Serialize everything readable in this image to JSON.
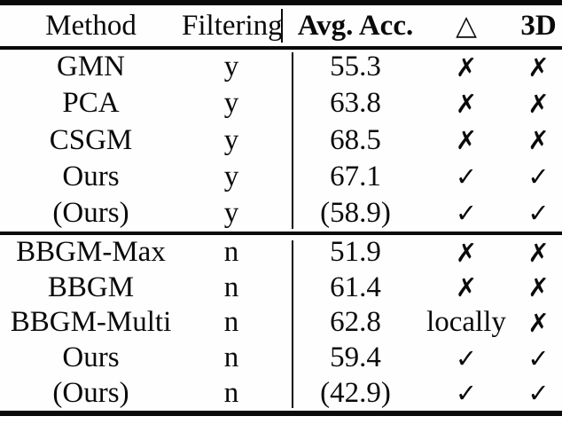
{
  "colors": {
    "text": "#0a0a0a",
    "background": "#fefefe",
    "rule": "#0a0a0a"
  },
  "header": {
    "method": "Method",
    "filtering": "Filtering",
    "avg_acc": "Avg. Acc.",
    "triangle": "△",
    "threed": "3D"
  },
  "table": {
    "groups": [
      {
        "rows": [
          {
            "method": "GMN",
            "filtering": "y",
            "avg_acc": "55.3",
            "triangle": "✗",
            "threed": "✗"
          },
          {
            "method": "PCA",
            "filtering": "y",
            "avg_acc": "63.8",
            "triangle": "✗",
            "threed": "✗"
          },
          {
            "method": "CSGM",
            "filtering": "y",
            "avg_acc": "68.5",
            "triangle": "✗",
            "threed": "✗"
          },
          {
            "method": "Ours",
            "filtering": "y",
            "avg_acc": "67.1",
            "triangle": "✓",
            "threed": "✓"
          },
          {
            "method": "(Ours)",
            "filtering": "y",
            "avg_acc": "(58.9)",
            "triangle": "✓",
            "threed": "✓"
          }
        ]
      },
      {
        "rows": [
          {
            "method": "BBGM-Max",
            "filtering": "n",
            "avg_acc": "51.9",
            "triangle": "✗",
            "threed": "✗"
          },
          {
            "method": "BBGM",
            "filtering": "n",
            "avg_acc": "61.4",
            "triangle": "✗",
            "threed": "✗"
          },
          {
            "method": "BBGM-Multi",
            "filtering": "n",
            "avg_acc": "62.8",
            "triangle": "locally",
            "threed": "✗"
          },
          {
            "method": "Ours",
            "filtering": "n",
            "avg_acc": "59.4",
            "triangle": "✓",
            "threed": "✓"
          },
          {
            "method": "(Ours)",
            "filtering": "n",
            "avg_acc": "(42.9)",
            "triangle": "✓",
            "threed": "✓"
          }
        ]
      }
    ]
  },
  "chart_data": {
    "type": "table",
    "columns": [
      "Method",
      "Filtering",
      "Avg. Acc.",
      "△",
      "3D"
    ],
    "rows": [
      [
        "GMN",
        "y",
        "55.3",
        "✗",
        "✗"
      ],
      [
        "PCA",
        "y",
        "63.8",
        "✗",
        "✗"
      ],
      [
        "CSGM",
        "y",
        "68.5",
        "✗",
        "✗"
      ],
      [
        "Ours",
        "y",
        "67.1",
        "✓",
        "✓"
      ],
      [
        "(Ours)",
        "y",
        "(58.9)",
        "✓",
        "✓"
      ],
      [
        "BBGM-Max",
        "n",
        "51.9",
        "✗",
        "✗"
      ],
      [
        "BBGM",
        "n",
        "61.4",
        "✗",
        "✗"
      ],
      [
        "BBGM-Multi",
        "n",
        "62.8",
        "locally",
        "✗"
      ],
      [
        "Ours",
        "n",
        "59.4",
        "✓",
        "✓"
      ],
      [
        "(Ours)",
        "n",
        "(42.9)",
        "✓",
        "✓"
      ]
    ]
  }
}
